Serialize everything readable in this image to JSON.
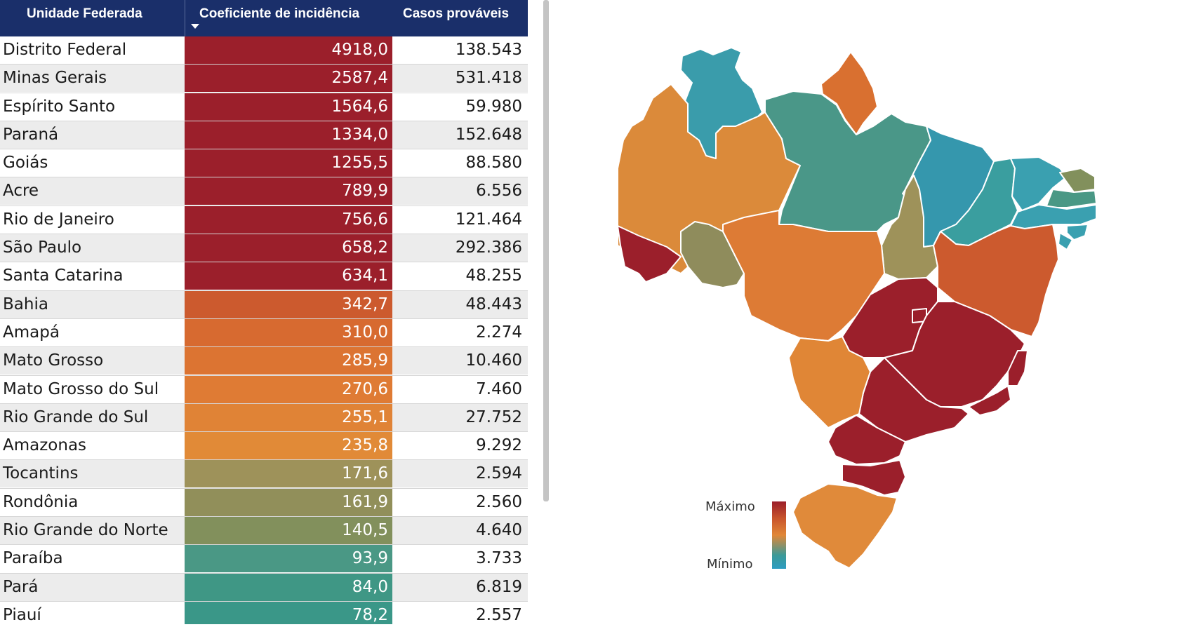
{
  "table": {
    "headers": {
      "uf": "Unidade Federada",
      "coef": "Coeficiente de incidência",
      "casos": "Casos prováveis"
    },
    "rows": [
      {
        "uf": "Distrito Federal",
        "coef": "4918,0",
        "casos": "138.543",
        "color": "#9b1f2b"
      },
      {
        "uf": "Minas Gerais",
        "coef": "2587,4",
        "casos": "531.418",
        "color": "#9b1f2b"
      },
      {
        "uf": "Espírito Santo",
        "coef": "1564,6",
        "casos": "59.980",
        "color": "#9b1f2b"
      },
      {
        "uf": "Paraná",
        "coef": "1334,0",
        "casos": "152.648",
        "color": "#9b1f2b"
      },
      {
        "uf": "Goiás",
        "coef": "1255,5",
        "casos": "88.580",
        "color": "#9b1f2b"
      },
      {
        "uf": "Acre",
        "coef": "789,9",
        "casos": "6.556",
        "color": "#9b1f2b"
      },
      {
        "uf": "Rio de Janeiro",
        "coef": "756,6",
        "casos": "121.464",
        "color": "#9b1f2b"
      },
      {
        "uf": "São Paulo",
        "coef": "658,2",
        "casos": "292.386",
        "color": "#9b1f2b"
      },
      {
        "uf": "Santa Catarina",
        "coef": "634,1",
        "casos": "48.255",
        "color": "#9b1f2b"
      },
      {
        "uf": "Bahia",
        "coef": "342,7",
        "casos": "48.443",
        "color": "#cc5a2e"
      },
      {
        "uf": "Amapá",
        "coef": "310,0",
        "casos": "2.274",
        "color": "#d76a30"
      },
      {
        "uf": "Mato Grosso",
        "coef": "285,9",
        "casos": "10.460",
        "color": "#dc7432"
      },
      {
        "uf": "Mato Grosso do Sul",
        "coef": "270,6",
        "casos": "7.460",
        "color": "#df7b34"
      },
      {
        "uf": "Rio Grande do Sul",
        "coef": "255,1",
        "casos": "27.752",
        "color": "#e08336"
      },
      {
        "uf": "Amazonas",
        "coef": "235,8",
        "casos": "9.292",
        "color": "#e18a37"
      },
      {
        "uf": "Tocantins",
        "coef": "171,6",
        "casos": "2.594",
        "color": "#9e925a"
      },
      {
        "uf": "Rondônia",
        "coef": "161,9",
        "casos": "2.560",
        "color": "#918f5a"
      },
      {
        "uf": "Rio Grande do Norte",
        "coef": "140,5",
        "casos": "4.640",
        "color": "#82905c"
      },
      {
        "uf": "Paraíba",
        "coef": "93,9",
        "casos": "3.733",
        "color": "#4a9885"
      },
      {
        "uf": "Pará",
        "coef": "84,0",
        "casos": "6.819",
        "color": "#3f9785"
      },
      {
        "uf": "Piauí",
        "coef": "78,2",
        "casos": "2.557",
        "color": "#3a9788"
      }
    ]
  },
  "legend": {
    "max_label": "Máximo",
    "min_label": "Mínimo"
  },
  "map_colors": {
    "acre": "#9b1f2b",
    "amazonas": "#db8a3a",
    "roraima": "#3a9cab",
    "amapa": "#d97030",
    "para": "#4a9788",
    "rondonia": "#8f8c5c",
    "mato_grosso": "#dd7b35",
    "tocantins": "#9e925a",
    "maranhao": "#3597ad",
    "piaui": "#3a9e9f",
    "ceara": "#3aa0b0",
    "rn": "#82905c",
    "paraiba": "#4a9885",
    "pernambuco": "#3aa0b0",
    "alagoas": "#3aa0b0",
    "sergipe": "#3aa0b0",
    "bahia": "#cc5a2e",
    "goias": "#9b1f2b",
    "df": "#9b1f2b",
    "minas": "#9b1f2b",
    "espirito_santo": "#9b1f2b",
    "rio": "#9b1f2b",
    "sao_paulo": "#9b1f2b",
    "parana": "#9b1f2b",
    "santa_catarina": "#9b1f2b",
    "rgs": "#e08a3a",
    "ms": "#e08636"
  }
}
